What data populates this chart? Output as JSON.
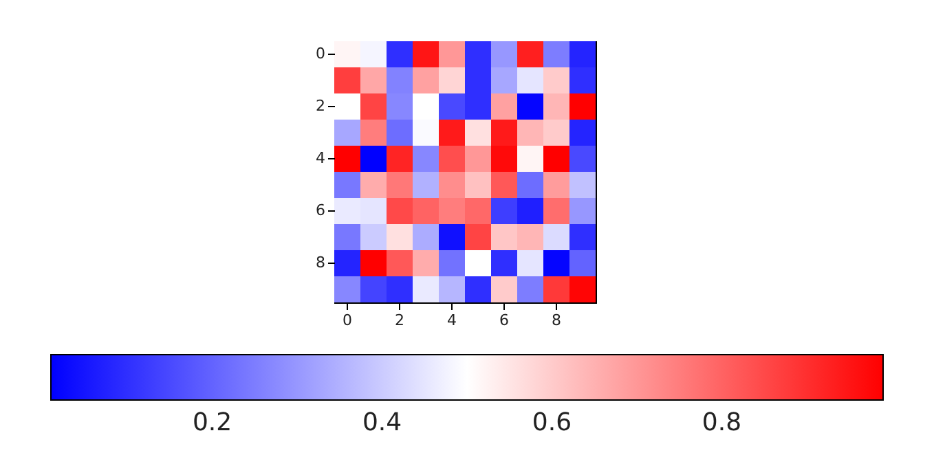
{
  "chart_data": {
    "type": "heatmap",
    "categories": [
      "0",
      null,
      "2",
      null,
      "4",
      null,
      "6",
      null,
      "8",
      null
    ],
    "y_categories": [
      "0",
      null,
      "2",
      null,
      "4",
      null,
      "6",
      null,
      "8",
      null
    ],
    "cells": [
      [
        0.52,
        0.48,
        0.1,
        0.95,
        0.7,
        0.1,
        0.3,
        0.93,
        0.25,
        0.08
      ],
      [
        0.87,
        0.67,
        0.26,
        0.68,
        0.58,
        0.1,
        0.33,
        0.45,
        0.6,
        0.1
      ],
      [
        0.5,
        0.86,
        0.27,
        0.5,
        0.15,
        0.1,
        0.68,
        0.02,
        0.64,
        0.99
      ],
      [
        0.33,
        0.75,
        0.22,
        0.49,
        0.94,
        0.56,
        0.94,
        0.64,
        0.6,
        0.08
      ],
      [
        0.99,
        0.01,
        0.92,
        0.27,
        0.84,
        0.7,
        0.97,
        0.52,
        0.99,
        0.15
      ],
      [
        0.24,
        0.66,
        0.76,
        0.35,
        0.72,
        0.62,
        0.82,
        0.22,
        0.69,
        0.38
      ],
      [
        0.46,
        0.45,
        0.85,
        0.8,
        0.75,
        0.79,
        0.13,
        0.07,
        0.78,
        0.3
      ],
      [
        0.24,
        0.4,
        0.56,
        0.34,
        0.04,
        0.86,
        0.61,
        0.64,
        0.43,
        0.1
      ],
      [
        0.08,
        0.99,
        0.82,
        0.66,
        0.23,
        0.5,
        0.1,
        0.45,
        0.02,
        0.2
      ],
      [
        0.27,
        0.14,
        0.1,
        0.46,
        0.36,
        0.1,
        0.6,
        0.25,
        0.88,
        0.98
      ]
    ],
    "clim": [
      0.01,
      0.99
    ],
    "cticks": [
      0.2,
      0.4,
      0.6,
      0.8
    ]
  }
}
